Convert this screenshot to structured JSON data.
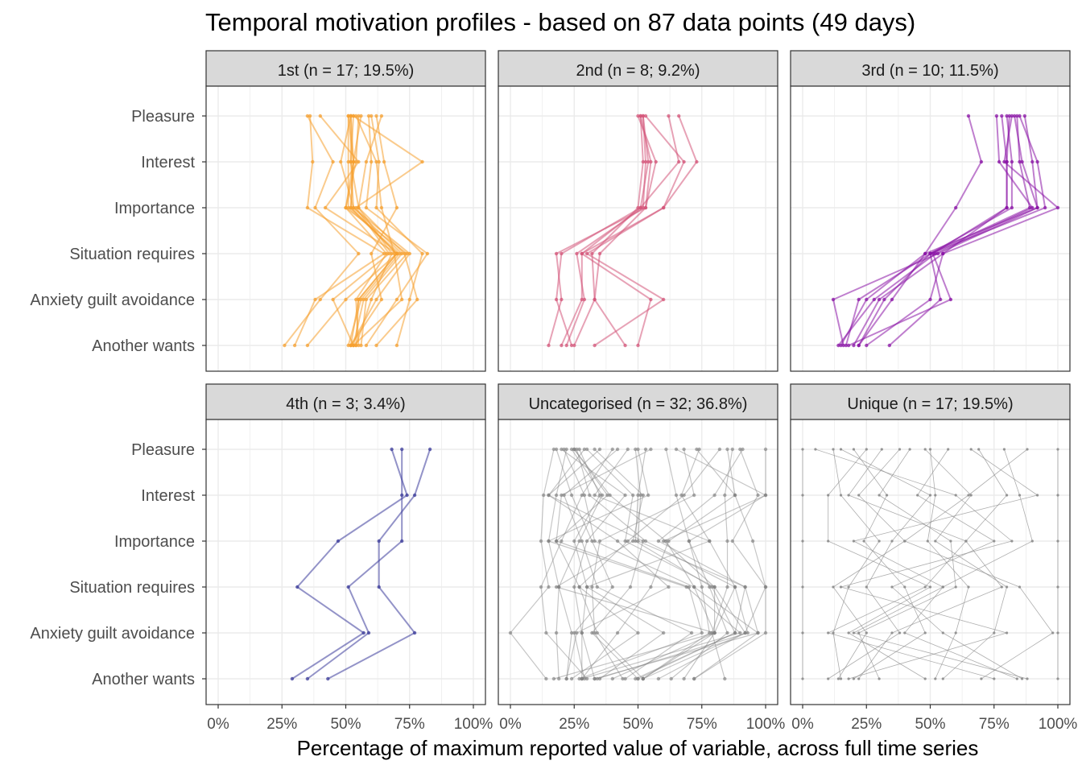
{
  "title": "Temporal motivation profiles - based on 87 data points (49 days)",
  "x_axis_title": "Percentage of maximum reported value of variable, across full time series",
  "colors": {
    "panel_strip_bg": "#d9d9d9",
    "grid": "#ebebeb",
    "axis_text": "#4d4d4d",
    "profile_1st": "#f5a030",
    "profile_2nd": "#d4567a",
    "profile_3rd": "#8a14a6",
    "profile_4th": "#3b3b9a",
    "uncategorised": "#808080",
    "unique": "#8c8c8c"
  },
  "chart_data": {
    "type": "line",
    "facets": [
      "1st (n = 17; 19.5%)",
      "2nd (n = 8; 9.2%)",
      "3rd (n = 10; 11.5%)",
      "4th (n = 3; 3.4%)",
      "Uncategorised (n = 32; 36.8%)",
      "Unique (n = 17; 19.5%)"
    ],
    "y_categories": [
      "Pleasure",
      "Interest",
      "Importance",
      "Situation requires",
      "Anxiety guilt avoidance",
      "Another wants"
    ],
    "x_ticks": [
      "0%",
      "25%",
      "50%",
      "75%",
      "100%"
    ],
    "xlim": [
      0,
      100
    ],
    "grid": true,
    "panels": [
      {
        "label": "1st (n = 17; 19.5%)",
        "color_key": "profile_1st",
        "n": 17,
        "series": [
          {
            "values": [
              52,
              53,
              52,
              70,
              55,
              52
            ]
          },
          {
            "values": [
              53,
              52,
              53,
              72,
              57,
              53
            ]
          },
          {
            "values": [
              52,
              52,
              55,
              68,
              60,
              54
            ]
          },
          {
            "values": [
              51,
              51,
              51,
              71,
              56,
              51
            ]
          },
          {
            "values": [
              55,
              54,
              50,
              66,
              54,
              55
            ]
          },
          {
            "values": [
              60,
              63,
              62,
              80,
              75,
              70
            ]
          },
          {
            "values": [
              36,
              37,
              35,
              65,
              38,
              30
            ]
          },
          {
            "values": [
              35,
              45,
              38,
              55,
              40,
              26
            ]
          },
          {
            "values": [
              62,
              65,
              70,
              60,
              64,
              52
            ]
          },
          {
            "values": [
              64,
              58,
              55,
              73,
              78,
              62
            ]
          },
          {
            "values": [
              53,
              80,
              54,
              67,
              45,
              53
            ]
          },
          {
            "values": [
              52,
              48,
              53,
              75,
              62,
              52
            ]
          },
          {
            "values": [
              51,
              53,
              52,
              70,
              55,
              54
            ]
          },
          {
            "values": [
              40,
              55,
              42,
              70,
              50,
              35
            ]
          },
          {
            "values": [
              59,
              60,
              58,
              82,
              70,
              58
            ]
          },
          {
            "values": [
              54,
              62,
              64,
              69,
              72,
              53
            ]
          },
          {
            "values": [
              56,
              53,
              50,
              74,
              58,
              56
            ]
          }
        ]
      },
      {
        "label": "2nd (n = 8; 9.2%)",
        "color_key": "profile_2nd",
        "n": 8,
        "series": [
          {
            "values": [
              51,
              55,
              53,
              18,
              20,
              15
            ]
          },
          {
            "values": [
              52,
              53,
              52,
              26,
              29,
              22
            ]
          },
          {
            "values": [
              62,
              66,
              51,
              20,
              18,
              24
            ]
          },
          {
            "values": [
              51,
              52,
              50,
              32,
              33,
              25
            ]
          },
          {
            "values": [
              66,
              73,
              60,
              30,
              60,
              33
            ]
          },
          {
            "values": [
              53,
              68,
              60,
              28,
              55,
              50
            ]
          },
          {
            "values": [
              52,
              54,
              51,
              28,
              28,
              20
            ]
          },
          {
            "values": [
              50,
              57,
              53,
              35,
              33,
              45
            ]
          }
        ]
      },
      {
        "label": "3rd (n = 10; 11.5%)",
        "color_key": "profile_3rd",
        "n": 10,
        "series": [
          {
            "values": [
              80,
              82,
              82,
              50,
              22,
              17
            ]
          },
          {
            "values": [
              83,
              86,
              92,
              53,
              12,
              16
            ]
          },
          {
            "values": [
              78,
              80,
              80,
              55,
              30,
              20
            ]
          },
          {
            "values": [
              82,
              79,
              100,
              55,
              50,
              25
            ]
          },
          {
            "values": [
              85,
              92,
              95,
              50,
              32,
              22
            ]
          },
          {
            "values": [
              76,
              77,
              90,
              52,
              28,
              14
            ]
          },
          {
            "values": [
              65,
              70,
              60,
              48,
              25,
              15
            ]
          },
          {
            "values": [
              84,
              85,
              89,
              50,
              54,
              34
            ]
          },
          {
            "values": [
              81,
              80,
              80,
              51,
              58,
              18
            ]
          },
          {
            "values": [
              87,
              90,
              92,
              48,
              35,
              22
            ]
          }
        ]
      },
      {
        "label": "4th (n = 3; 3.4%)",
        "color_key": "profile_4th",
        "n": 3,
        "series": [
          {
            "values": [
              72,
              72,
              72,
              51,
              59,
              35
            ]
          },
          {
            "values": [
              68,
              74,
              47,
              31,
              57,
              29
            ]
          },
          {
            "values": [
              83,
              77,
              63,
              63,
              77,
              43
            ]
          }
        ]
      },
      {
        "label": "Uncategorised (n = 32; 36.8%)",
        "color_key": "uncategorised",
        "n": 32,
        "series": [
          {
            "values": [
              17,
              13,
              12,
              15,
              0,
              14
            ]
          },
          {
            "values": [
              27,
              35,
              25,
              30,
              28,
              33
            ]
          },
          {
            "values": [
              25,
              38,
              18,
              27,
              50,
              24
            ]
          },
          {
            "values": [
              49,
              51,
              50,
              92,
              88,
              49
            ]
          },
          {
            "values": [
              30,
              48,
              45,
              80,
              80,
              40
            ]
          },
          {
            "values": [
              22,
              18,
              15,
              19,
              18,
              19
            ]
          },
          {
            "values": [
              85,
              88,
              95,
              100,
              92,
              52
            ]
          },
          {
            "values": [
              40,
              28,
              20,
              12,
              14,
              30
            ]
          },
          {
            "values": [
              18,
              24,
              32,
              40,
              25,
              29
            ]
          },
          {
            "values": [
              61,
              65,
              70,
              78,
              85,
              63
            ]
          },
          {
            "values": [
              33,
              52,
              48,
              18,
              80,
              17
            ]
          },
          {
            "values": [
              100,
              100,
              70,
              75,
              78,
              52
            ]
          },
          {
            "values": [
              26,
              31,
              53,
              88,
              93,
              34
            ]
          },
          {
            "values": [
              90,
              97,
              87,
              100,
              100,
              72
            ]
          },
          {
            "values": [
              74,
              67,
              78,
              88,
              80,
              68
            ]
          },
          {
            "values": [
              53,
              50,
              49,
              79,
              88,
              50
            ]
          },
          {
            "values": [
              65,
              100,
              60,
              80,
              92,
              58
            ]
          },
          {
            "values": [
              55,
              20,
              18,
              70,
              75,
              27
            ]
          },
          {
            "values": [
              82,
              68,
              46,
              27,
              34,
              52
            ]
          },
          {
            "values": [
              29,
              15,
              52,
              47,
              32,
              50
            ]
          },
          {
            "values": [
              68,
              72,
              35,
              32,
              33,
              44
            ]
          },
          {
            "values": [
              24,
              36,
              27,
              19,
              24,
              22
            ]
          },
          {
            "values": [
              20,
              45,
              30,
              25,
              28,
              28
            ]
          },
          {
            "values": [
              91,
              80,
              58,
              92,
              97,
              72
            ]
          },
          {
            "values": [
              42,
              21,
              28,
              34,
              71,
              45
            ]
          },
          {
            "values": [
              87,
              84,
              85,
              85,
              79,
              84
            ]
          },
          {
            "values": [
              50,
              54,
              15,
              69,
              90,
              28
            ]
          },
          {
            "values": [
              25,
              39,
              61,
              72,
              97,
              33
            ]
          },
          {
            "values": [
              35,
              15,
              42,
              62,
              26,
              22
            ]
          },
          {
            "values": [
              73,
              88,
              62,
              55,
              42,
              28
            ]
          },
          {
            "values": [
              21,
              29,
              33,
              72,
              80,
              52
            ]
          },
          {
            "values": [
              46,
              33,
              78,
              30,
              60,
              35
            ]
          }
        ]
      },
      {
        "label": "Unique (n = 17; 19.5%)",
        "color_key": "unique",
        "n": 17,
        "series": [
          {
            "values": [
              0,
              0,
              0,
              0,
              0,
              0
            ]
          },
          {
            "values": [
              100,
              100,
              100,
              100,
              100,
              100
            ]
          },
          {
            "values": [
              12,
              15,
              30,
              18,
              12,
              15
            ]
          },
          {
            "values": [
              20,
              33,
              24,
              40,
              48,
              20
            ]
          },
          {
            "values": [
              31,
              18,
              64,
              78,
              35,
              22
            ]
          },
          {
            "values": [
              50,
              52,
              49,
              65,
              60,
              52
            ]
          },
          {
            "values": [
              69,
              80,
              64,
              48,
              10,
              75
            ]
          },
          {
            "values": [
              79,
              85,
              90,
              55,
              20,
              88
            ]
          },
          {
            "values": [
              15,
              50,
              35,
              25,
              38,
              10
            ]
          },
          {
            "values": [
              48,
              66,
              52,
              80,
              75,
              55
            ]
          },
          {
            "values": [
              57,
              45,
              75,
              35,
              55,
              86
            ]
          },
          {
            "values": [
              88,
              65,
              40,
              85,
              98,
              70
            ]
          },
          {
            "values": [
              5,
              60,
              82,
              15,
              80,
              18
            ]
          },
          {
            "values": [
              25,
              10,
              10,
              50,
              18,
              48
            ]
          },
          {
            "values": [
              38,
              22,
              40,
              12,
              25,
              14
            ]
          },
          {
            "values": [
              66,
              92,
              20,
              55,
              40,
              84
            ]
          },
          {
            "values": [
              42,
              30,
              58,
              60,
              22,
              30
            ]
          }
        ]
      }
    ]
  }
}
